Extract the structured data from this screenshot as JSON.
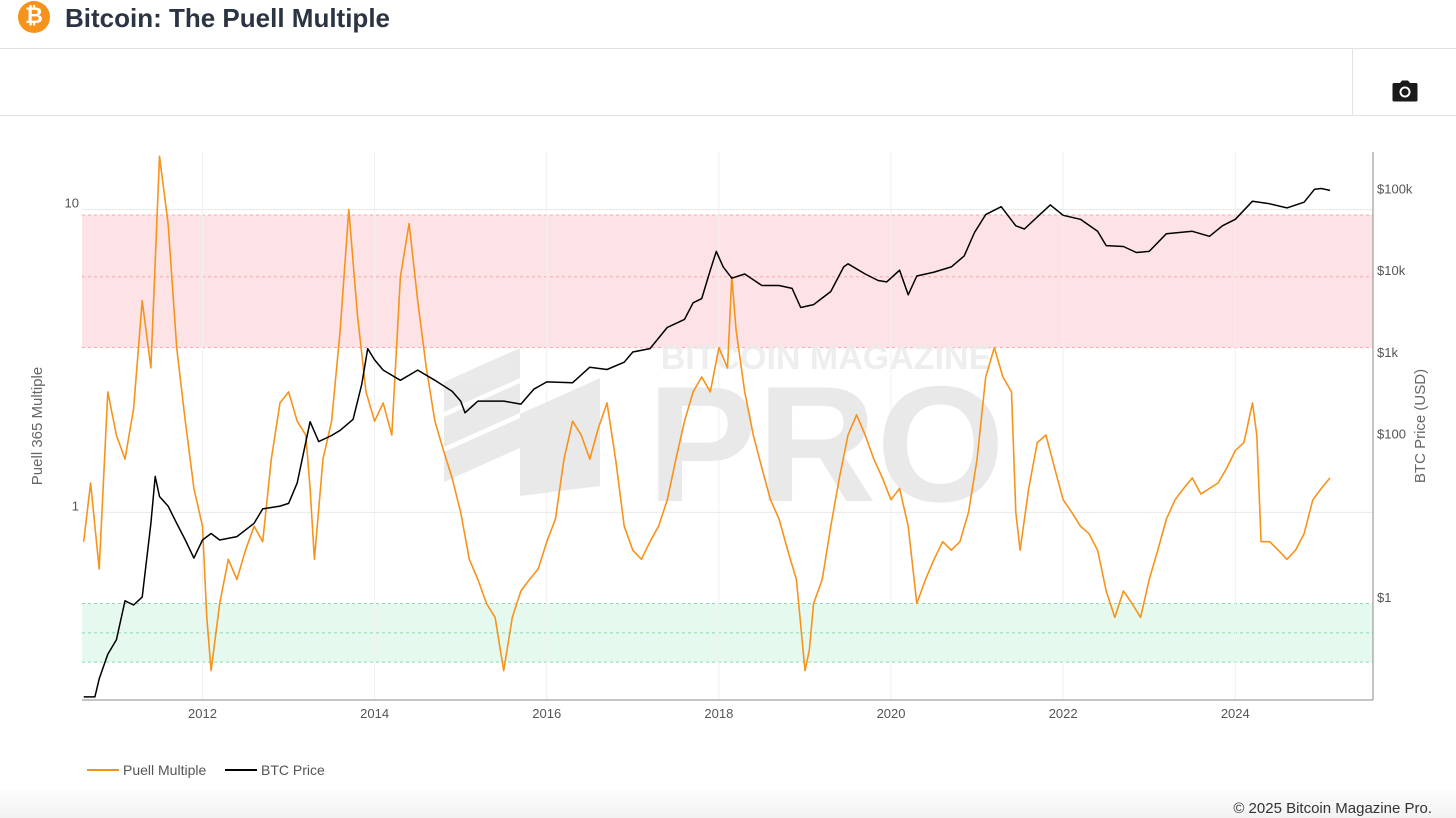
{
  "header": {
    "logo_glyph": "₿",
    "title": "Bitcoin: The Puell Multiple"
  },
  "toolbar": {
    "camera_icon": "camera-icon"
  },
  "watermark": {
    "top": "BITCOIN MAGAZINE",
    "main": "PRO"
  },
  "footer": {
    "copyright": "© 2025 Bitcoin Magazine Pro."
  },
  "colors": {
    "puell": "#f7931a",
    "price": "#000000",
    "red_band": "#fde3e5",
    "green_band": "#e6f9ef"
  },
  "chart_data": {
    "type": "line",
    "title": "",
    "xlabel": "",
    "y_left_label": "Puell 365 Multiple",
    "y_right_label": "BTC Price (USD)",
    "x_ticks": [
      "2012",
      "2014",
      "2016",
      "2018",
      "2020",
      "2022",
      "2024"
    ],
    "y_left_ticks": [
      "1",
      "10"
    ],
    "y_right_ticks": [
      "$1",
      "$100",
      "$1k",
      "$10k",
      "$100k"
    ],
    "y_left_scale": "log",
    "y_right_scale": "log",
    "x_range": [
      2010.6,
      2025.6
    ],
    "y_left_range": [
      0.24,
      15.5
    ],
    "y_right_range": [
      0.055,
      280000
    ],
    "bands": [
      {
        "name": "overvalued",
        "y_range": [
          3.5,
          9.6
        ],
        "mid_line": 6.0,
        "color": "#fde3e5"
      },
      {
        "name": "undervalued",
        "y_range": [
          0.32,
          0.5
        ],
        "mid_line": 0.4,
        "color": "#e6f9ef"
      }
    ],
    "legend_position": "bottom-left",
    "series": [
      {
        "name": "Puell Multiple",
        "axis": "left",
        "color": "#f7931a",
        "points": [
          [
            2010.62,
            0.8
          ],
          [
            2010.7,
            1.25
          ],
          [
            2010.8,
            0.65
          ],
          [
            2010.9,
            2.5
          ],
          [
            2011.0,
            1.8
          ],
          [
            2011.1,
            1.5
          ],
          [
            2011.2,
            2.2
          ],
          [
            2011.3,
            5.0
          ],
          [
            2011.4,
            3.0
          ],
          [
            2011.5,
            15.0
          ],
          [
            2011.6,
            9.0
          ],
          [
            2011.7,
            3.5
          ],
          [
            2011.8,
            2.0
          ],
          [
            2011.9,
            1.2
          ],
          [
            2012.0,
            0.9
          ],
          [
            2012.05,
            0.45
          ],
          [
            2012.1,
            0.3
          ],
          [
            2012.2,
            0.5
          ],
          [
            2012.3,
            0.7
          ],
          [
            2012.4,
            0.6
          ],
          [
            2012.5,
            0.75
          ],
          [
            2012.6,
            0.9
          ],
          [
            2012.7,
            0.8
          ],
          [
            2012.8,
            1.5
          ],
          [
            2012.9,
            2.3
          ],
          [
            2013.0,
            2.5
          ],
          [
            2013.1,
            2.0
          ],
          [
            2013.2,
            1.8
          ],
          [
            2013.25,
            1.2
          ],
          [
            2013.3,
            0.7
          ],
          [
            2013.4,
            1.5
          ],
          [
            2013.5,
            2.0
          ],
          [
            2013.6,
            4.0
          ],
          [
            2013.7,
            10.0
          ],
          [
            2013.8,
            4.5
          ],
          [
            2013.9,
            2.5
          ],
          [
            2014.0,
            2.0
          ],
          [
            2014.1,
            2.3
          ],
          [
            2014.2,
            1.8
          ],
          [
            2014.3,
            6.0
          ],
          [
            2014.4,
            9.0
          ],
          [
            2014.5,
            5.0
          ],
          [
            2014.6,
            3.0
          ],
          [
            2014.7,
            2.0
          ],
          [
            2014.8,
            1.6
          ],
          [
            2014.9,
            1.3
          ],
          [
            2015.0,
            1.0
          ],
          [
            2015.1,
            0.7
          ],
          [
            2015.2,
            0.6
          ],
          [
            2015.3,
            0.5
          ],
          [
            2015.4,
            0.45
          ],
          [
            2015.5,
            0.3
          ],
          [
            2015.6,
            0.45
          ],
          [
            2015.7,
            0.55
          ],
          [
            2015.8,
            0.6
          ],
          [
            2015.9,
            0.65
          ],
          [
            2016.0,
            0.8
          ],
          [
            2016.1,
            0.95
          ],
          [
            2016.2,
            1.5
          ],
          [
            2016.3,
            2.0
          ],
          [
            2016.4,
            1.8
          ],
          [
            2016.5,
            1.5
          ],
          [
            2016.6,
            1.9
          ],
          [
            2016.7,
            2.3
          ],
          [
            2016.8,
            1.5
          ],
          [
            2016.9,
            0.9
          ],
          [
            2017.0,
            0.75
          ],
          [
            2017.1,
            0.7
          ],
          [
            2017.2,
            0.8
          ],
          [
            2017.3,
            0.9
          ],
          [
            2017.4,
            1.1
          ],
          [
            2017.5,
            1.5
          ],
          [
            2017.6,
            2.0
          ],
          [
            2017.7,
            2.5
          ],
          [
            2017.8,
            2.8
          ],
          [
            2017.9,
            2.5
          ],
          [
            2018.0,
            3.5
          ],
          [
            2018.1,
            3.0
          ],
          [
            2018.15,
            6.0
          ],
          [
            2018.2,
            4.0
          ],
          [
            2018.3,
            2.5
          ],
          [
            2018.4,
            1.8
          ],
          [
            2018.5,
            1.4
          ],
          [
            2018.6,
            1.1
          ],
          [
            2018.7,
            0.95
          ],
          [
            2018.8,
            0.75
          ],
          [
            2018.9,
            0.6
          ],
          [
            2019.0,
            0.3
          ],
          [
            2019.05,
            0.35
          ],
          [
            2019.1,
            0.5
          ],
          [
            2019.2,
            0.6
          ],
          [
            2019.3,
            0.9
          ],
          [
            2019.4,
            1.3
          ],
          [
            2019.5,
            1.8
          ],
          [
            2019.6,
            2.1
          ],
          [
            2019.7,
            1.8
          ],
          [
            2019.8,
            1.5
          ],
          [
            2019.9,
            1.3
          ],
          [
            2020.0,
            1.1
          ],
          [
            2020.1,
            1.2
          ],
          [
            2020.2,
            0.9
          ],
          [
            2020.3,
            0.5
          ],
          [
            2020.4,
            0.6
          ],
          [
            2020.5,
            0.7
          ],
          [
            2020.6,
            0.8
          ],
          [
            2020.7,
            0.75
          ],
          [
            2020.8,
            0.8
          ],
          [
            2020.9,
            1.0
          ],
          [
            2021.0,
            1.5
          ],
          [
            2021.1,
            2.8
          ],
          [
            2021.2,
            3.5
          ],
          [
            2021.3,
            2.8
          ],
          [
            2021.4,
            2.5
          ],
          [
            2021.45,
            1.0
          ],
          [
            2021.5,
            0.75
          ],
          [
            2021.6,
            1.2
          ],
          [
            2021.7,
            1.7
          ],
          [
            2021.8,
            1.8
          ],
          [
            2021.9,
            1.4
          ],
          [
            2022.0,
            1.1
          ],
          [
            2022.1,
            1.0
          ],
          [
            2022.2,
            0.9
          ],
          [
            2022.3,
            0.85
          ],
          [
            2022.4,
            0.75
          ],
          [
            2022.5,
            0.55
          ],
          [
            2022.6,
            0.45
          ],
          [
            2022.7,
            0.55
          ],
          [
            2022.8,
            0.5
          ],
          [
            2022.9,
            0.45
          ],
          [
            2023.0,
            0.6
          ],
          [
            2023.1,
            0.75
          ],
          [
            2023.2,
            0.95
          ],
          [
            2023.3,
            1.1
          ],
          [
            2023.4,
            1.2
          ],
          [
            2023.5,
            1.3
          ],
          [
            2023.6,
            1.15
          ],
          [
            2023.7,
            1.2
          ],
          [
            2023.8,
            1.25
          ],
          [
            2023.9,
            1.4
          ],
          [
            2024.0,
            1.6
          ],
          [
            2024.1,
            1.7
          ],
          [
            2024.2,
            2.3
          ],
          [
            2024.25,
            1.8
          ],
          [
            2024.3,
            0.8
          ],
          [
            2024.4,
            0.8
          ],
          [
            2024.5,
            0.75
          ],
          [
            2024.6,
            0.7
          ],
          [
            2024.7,
            0.75
          ],
          [
            2024.8,
            0.85
          ],
          [
            2024.9,
            1.1
          ],
          [
            2025.0,
            1.2
          ],
          [
            2025.1,
            1.3
          ]
        ]
      },
      {
        "name": "BTC Price",
        "axis": "right",
        "color": "#000000",
        "points": [
          [
            2010.62,
            0.06
          ],
          [
            2010.75,
            0.06
          ],
          [
            2010.8,
            0.1
          ],
          [
            2010.9,
            0.2
          ],
          [
            2011.0,
            0.3
          ],
          [
            2011.1,
            0.9
          ],
          [
            2011.2,
            0.8
          ],
          [
            2011.3,
            1.0
          ],
          [
            2011.4,
            8.0
          ],
          [
            2011.45,
            30.0
          ],
          [
            2011.5,
            17.0
          ],
          [
            2011.6,
            13.0
          ],
          [
            2011.7,
            8.0
          ],
          [
            2011.8,
            5.0
          ],
          [
            2011.9,
            3.0
          ],
          [
            2012.0,
            5.0
          ],
          [
            2012.1,
            6.0
          ],
          [
            2012.2,
            5.0
          ],
          [
            2012.4,
            5.5
          ],
          [
            2012.6,
            8.0
          ],
          [
            2012.7,
            12.0
          ],
          [
            2012.9,
            13.0
          ],
          [
            2013.0,
            14.0
          ],
          [
            2013.1,
            25.0
          ],
          [
            2013.25,
            140.0
          ],
          [
            2013.35,
            80.0
          ],
          [
            2013.5,
            95.0
          ],
          [
            2013.6,
            110.0
          ],
          [
            2013.75,
            150.0
          ],
          [
            2013.85,
            400.0
          ],
          [
            2013.92,
            1100.0
          ],
          [
            2014.0,
            800.0
          ],
          [
            2014.1,
            600.0
          ],
          [
            2014.3,
            450.0
          ],
          [
            2014.5,
            600.0
          ],
          [
            2014.7,
            450.0
          ],
          [
            2014.9,
            330.0
          ],
          [
            2015.0,
            250.0
          ],
          [
            2015.05,
            180.0
          ],
          [
            2015.2,
            250.0
          ],
          [
            2015.5,
            250.0
          ],
          [
            2015.7,
            230.0
          ],
          [
            2015.85,
            350.0
          ],
          [
            2016.0,
            430.0
          ],
          [
            2016.3,
            420.0
          ],
          [
            2016.5,
            650.0
          ],
          [
            2016.7,
            610.0
          ],
          [
            2016.9,
            750.0
          ],
          [
            2017.0,
            1000.0
          ],
          [
            2017.2,
            1100.0
          ],
          [
            2017.4,
            2000.0
          ],
          [
            2017.6,
            2500.0
          ],
          [
            2017.7,
            4000.0
          ],
          [
            2017.8,
            4500.0
          ],
          [
            2017.9,
            10000.0
          ],
          [
            2017.97,
            17000.0
          ],
          [
            2018.05,
            11000.0
          ],
          [
            2018.15,
            8000.0
          ],
          [
            2018.3,
            9000.0
          ],
          [
            2018.5,
            6500.0
          ],
          [
            2018.7,
            6500.0
          ],
          [
            2018.85,
            6000.0
          ],
          [
            2018.95,
            3500.0
          ],
          [
            2019.1,
            3800.0
          ],
          [
            2019.3,
            5500.0
          ],
          [
            2019.45,
            11000.0
          ],
          [
            2019.5,
            12000.0
          ],
          [
            2019.7,
            9000.0
          ],
          [
            2019.85,
            7500.0
          ],
          [
            2019.95,
            7200.0
          ],
          [
            2020.1,
            10000.0
          ],
          [
            2020.2,
            5000.0
          ],
          [
            2020.3,
            8500.0
          ],
          [
            2020.5,
            9500.0
          ],
          [
            2020.7,
            11000.0
          ],
          [
            2020.85,
            15000.0
          ],
          [
            2020.97,
            29000.0
          ],
          [
            2021.1,
            48000.0
          ],
          [
            2021.28,
            60000.0
          ],
          [
            2021.45,
            35000.0
          ],
          [
            2021.55,
            32000.0
          ],
          [
            2021.7,
            45000.0
          ],
          [
            2021.85,
            63000.0
          ],
          [
            2022.0,
            47000.0
          ],
          [
            2022.2,
            42000.0
          ],
          [
            2022.4,
            30000.0
          ],
          [
            2022.5,
            20000.0
          ],
          [
            2022.7,
            19500.0
          ],
          [
            2022.85,
            16500.0
          ],
          [
            2023.0,
            17000.0
          ],
          [
            2023.2,
            28000.0
          ],
          [
            2023.5,
            30000.0
          ],
          [
            2023.7,
            26000.0
          ],
          [
            2023.85,
            35000.0
          ],
          [
            2024.0,
            42000.0
          ],
          [
            2024.2,
            70000.0
          ],
          [
            2024.4,
            65000.0
          ],
          [
            2024.6,
            58000.0
          ],
          [
            2024.8,
            68000.0
          ],
          [
            2024.92,
            98000.0
          ],
          [
            2025.0,
            100000.0
          ],
          [
            2025.1,
            95000.0
          ]
        ]
      }
    ]
  }
}
